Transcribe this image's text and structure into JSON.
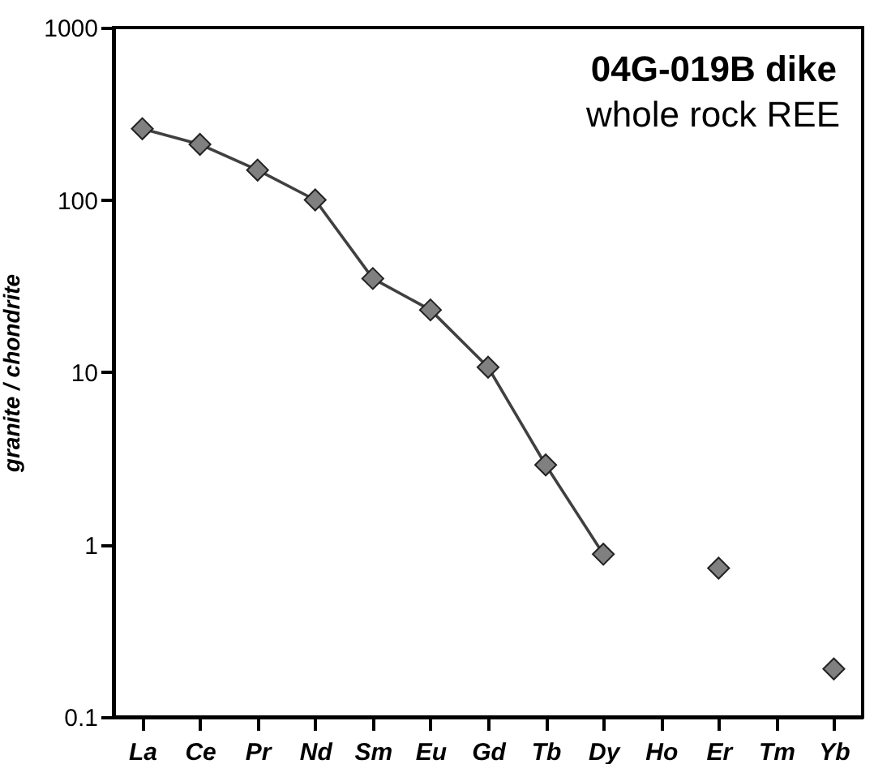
{
  "chart_data": {
    "type": "line",
    "title": "04G-019B dike",
    "subtitle": "whole rock REE",
    "ylabel": "granite / chondrite",
    "categories": [
      "La",
      "Ce",
      "Pr",
      "Nd",
      "Sm",
      "Eu",
      "Gd",
      "Tb",
      "Dy",
      "Ho",
      "Er",
      "Tm",
      "Yb"
    ],
    "series": [
      {
        "color": "#808080",
        "values": [
          259,
          210,
          149,
          100,
          35,
          23,
          10.7,
          2.9,
          0.88,
          null,
          0.73,
          null,
          0.19
        ]
      }
    ],
    "log": true,
    "ylim": [
      0.1,
      1000
    ],
    "yticks": [
      0.1,
      1,
      10,
      100,
      1000
    ],
    "grid": false,
    "marker": "diamond",
    "line_style": "solid"
  }
}
